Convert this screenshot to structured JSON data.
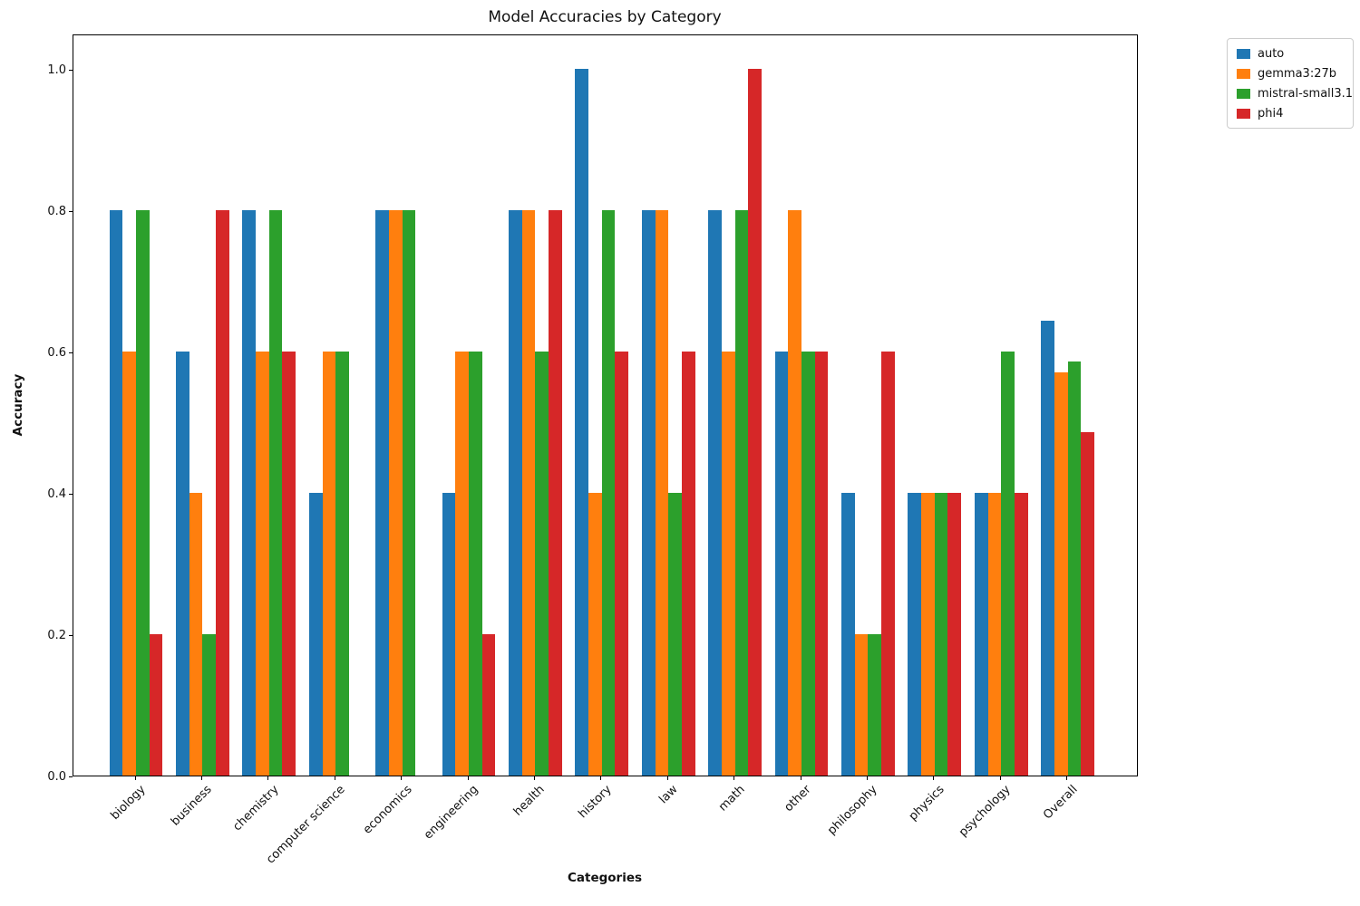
{
  "chart_data": {
    "type": "bar",
    "title": "Model Accuracies by Category",
    "xlabel": "Categories",
    "ylabel": "Accuracy",
    "categories": [
      "biology",
      "business",
      "chemistry",
      "computer science",
      "economics",
      "engineering",
      "health",
      "history",
      "law",
      "math",
      "other",
      "philosophy",
      "physics",
      "psychology",
      "Overall"
    ],
    "series": [
      {
        "name": "auto",
        "color": "#1f77b4",
        "values": [
          0.8,
          0.6,
          0.8,
          0.4,
          0.8,
          0.4,
          0.8,
          1.0,
          0.8,
          0.8,
          0.6,
          0.4,
          0.4,
          0.4,
          0.643
        ]
      },
      {
        "name": "gemma3:27b",
        "color": "#ff7f0e",
        "values": [
          0.6,
          0.4,
          0.6,
          0.6,
          0.8,
          0.6,
          0.8,
          0.4,
          0.8,
          0.6,
          0.8,
          0.2,
          0.4,
          0.4,
          0.571
        ]
      },
      {
        "name": "mistral-small3.1",
        "color": "#2ca02c",
        "values": [
          0.8,
          0.2,
          0.8,
          0.6,
          0.8,
          0.6,
          0.6,
          0.8,
          0.4,
          0.8,
          0.6,
          0.2,
          0.4,
          0.6,
          0.586
        ]
      },
      {
        "name": "phi4",
        "color": "#d62728",
        "values": [
          0.2,
          0.8,
          0.6,
          0.0,
          0.0,
          0.2,
          0.8,
          0.6,
          0.6,
          1.0,
          0.6,
          0.6,
          0.4,
          0.4,
          0.486
        ]
      }
    ],
    "ylim": [
      0,
      1.05
    ],
    "yticks": [
      0.0,
      0.2,
      0.4,
      0.6,
      0.8,
      1.0
    ],
    "grid": false,
    "legend_position": "upper-right-outside"
  }
}
